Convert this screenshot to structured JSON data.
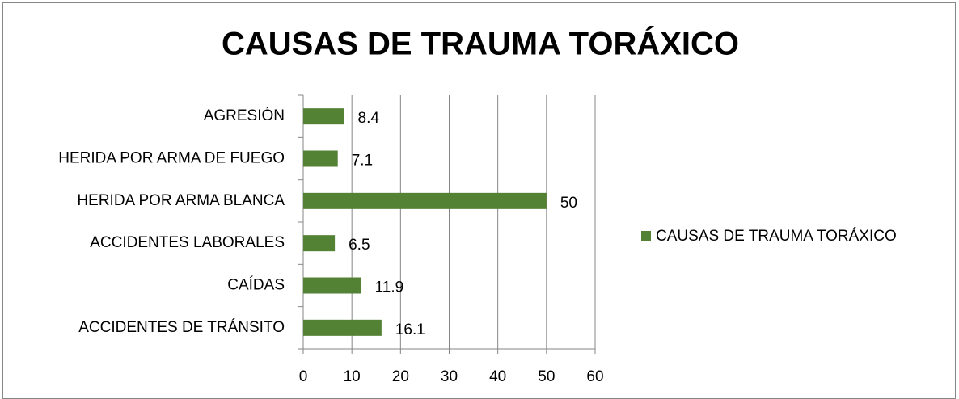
{
  "chart_data": {
    "type": "hbar",
    "title": "CAUSAS DE TRAUMA TORÁXICO",
    "categories": [
      "AGRESIÓN",
      "HERIDA POR ARMA DE FUEGO",
      "HERIDA POR ARMA BLANCA",
      "ACCIDENTES LABORALES",
      "CAÍDAS",
      "ACCIDENTES DE TRÁNSITO"
    ],
    "series": [
      {
        "name": "CAUSAS DE TRAUMA TORÁXICO",
        "color": "#548235",
        "values": [
          8.4,
          7.1,
          50,
          6.5,
          11.9,
          16.1
        ]
      }
    ],
    "xlim": [
      0,
      60
    ],
    "xticks": [
      0,
      10,
      20,
      30,
      40,
      50,
      60
    ],
    "grid": true,
    "legend": "right"
  }
}
